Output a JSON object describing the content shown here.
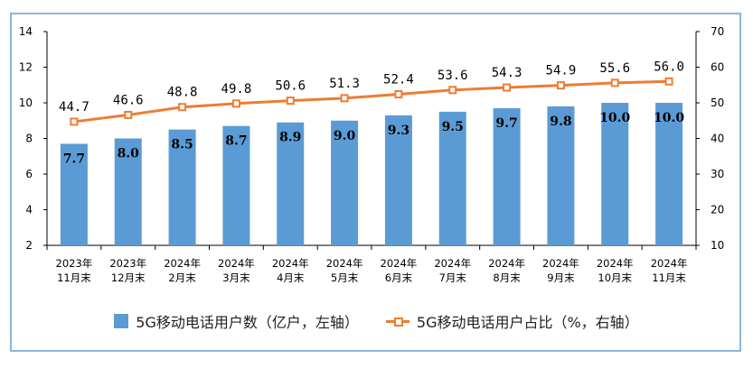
{
  "chart_data": {
    "type": "bar+line",
    "categories": [
      "2023年\n11月末",
      "2023年\n12月末",
      "2024年\n2月末",
      "2024年\n3月末",
      "2024年\n4月末",
      "2024年\n5月末",
      "2024年\n6月末",
      "2024年\n7月末",
      "2024年\n8月末",
      "2024年\n9月末",
      "2024年\n10月末",
      "2024年\n11月末"
    ],
    "series": [
      {
        "name": "5G移动电话用户数（亿户，左轴）",
        "type": "bar",
        "axis": "left",
        "color": "#5b9bd5",
        "values": [
          7.7,
          8.0,
          8.5,
          8.7,
          8.9,
          9.0,
          9.3,
          9.5,
          9.7,
          9.8,
          10.0,
          10.0
        ],
        "labels": [
          "7.7",
          "8.0",
          "8.5",
          "8.7",
          "8.9",
          "9.0",
          "9.3",
          "9.5",
          "9.7",
          "9.8",
          "10.0",
          "10.0"
        ]
      },
      {
        "name": "5G移动电话用户占比（%，右轴）",
        "type": "line",
        "axis": "right",
        "color": "#ed7d31",
        "values": [
          44.7,
          46.6,
          48.8,
          49.8,
          50.6,
          51.3,
          52.4,
          53.6,
          54.3,
          54.9,
          55.6,
          56.0
        ],
        "labels": [
          "44.7",
          "46.6",
          "48.8",
          "49.8",
          "50.6",
          "51.3",
          "52.4",
          "53.6",
          "54.3",
          "54.9",
          "55.6",
          "56.0"
        ]
      }
    ],
    "y_left": {
      "min": 2,
      "max": 14,
      "ticks": [
        "2",
        "4",
        "6",
        "8",
        "10",
        "12",
        "14"
      ]
    },
    "y_right": {
      "min": 10,
      "max": 70,
      "ticks": [
        "10",
        "20",
        "30",
        "40",
        "50",
        "60",
        "70"
      ]
    },
    "grid": false,
    "legend_position": "bottom"
  },
  "legend": {
    "bar_label": "5G移动电话用户数（亿户，左轴）",
    "line_label": "5G移动电话用户占比（%，右轴）"
  }
}
